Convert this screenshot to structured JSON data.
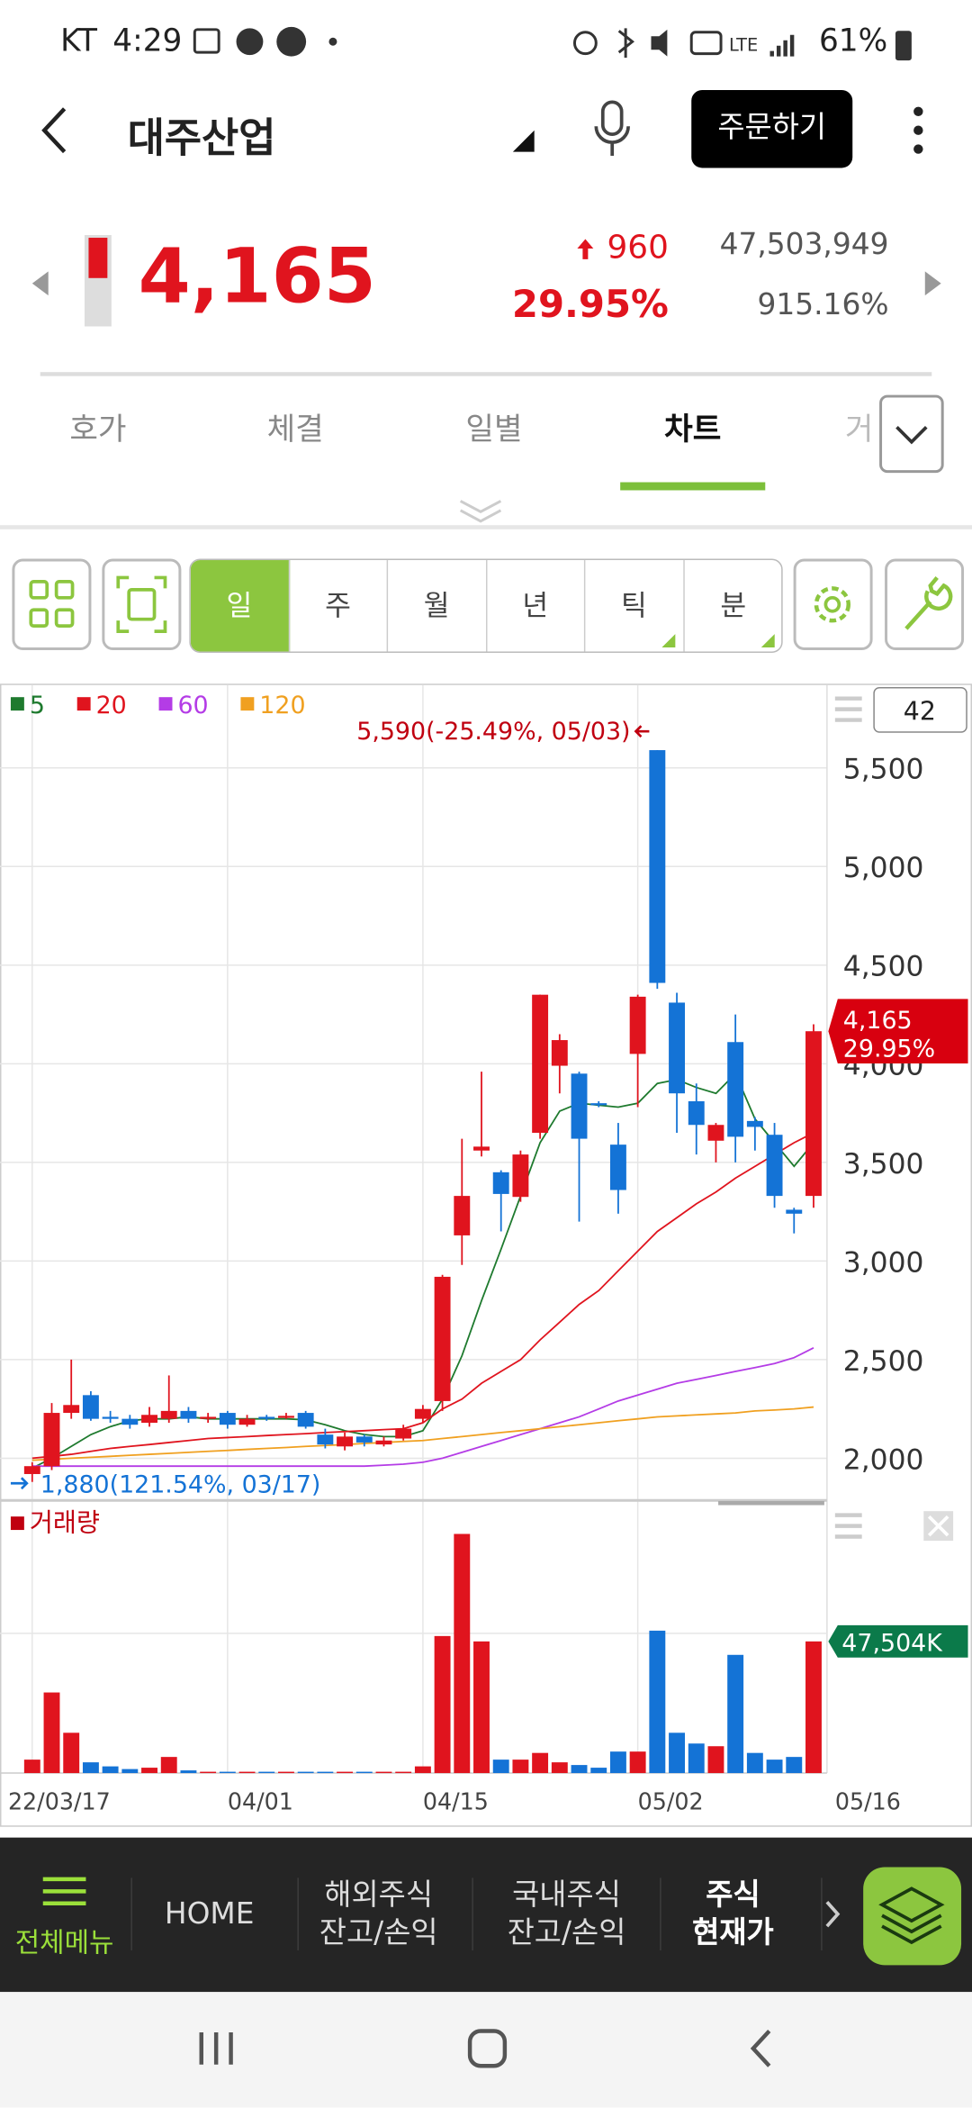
{
  "status": {
    "carrier": "KT",
    "time": "4:29",
    "battery": "61%"
  },
  "header": {
    "title": "대주산업",
    "order_button": "주문하기"
  },
  "quote": {
    "price": "4,165",
    "change": "960",
    "change_pct": "29.95%",
    "volume": "47,503,949",
    "volume_ratio": "915.16%"
  },
  "tabs": [
    "호가",
    "체결",
    "일별",
    "차트",
    "거"
  ],
  "periods": [
    "일",
    "주",
    "월",
    "년",
    "틱",
    "분"
  ],
  "chart_data": {
    "type": "candlestick",
    "count_box": "42",
    "categories": [
      "22/03/17",
      null,
      null,
      null,
      null,
      null,
      null,
      null,
      null,
      null,
      "04/01",
      null,
      null,
      null,
      null,
      null,
      null,
      null,
      null,
      null,
      "04/15",
      null,
      null,
      null,
      null,
      null,
      null,
      null,
      null,
      null,
      null,
      "05/02",
      null,
      null,
      null,
      null,
      null,
      null,
      null,
      null,
      null
    ],
    "x_end_label": "05/16",
    "open": [
      1920,
      1960,
      2230,
      2320,
      2210,
      2200,
      2180,
      2200,
      2240,
      2200,
      2230,
      2170,
      2210,
      2210,
      2230,
      2120,
      2060,
      2110,
      2070,
      2100,
      2200,
      2290,
      3130,
      3560,
      3450,
      3325,
      3650,
      3990,
      3950,
      3800,
      3590,
      4050,
      5590,
      4310,
      3810,
      3610,
      4110,
      3710,
      3640,
      3260,
      3330
    ],
    "high": [
      1980,
      2280,
      2500,
      2340,
      2240,
      2220,
      2260,
      2420,
      2260,
      2230,
      2240,
      2220,
      2220,
      2230,
      2240,
      2150,
      2130,
      2120,
      2110,
      2170,
      2270,
      2930,
      3620,
      3960,
      3460,
      3560,
      4350,
      4150,
      3960,
      3810,
      3700,
      4350,
      5590,
      4360,
      3900,
      3700,
      4250,
      3730,
      3700,
      3270,
      4200
    ],
    "low": [
      1880,
      1940,
      2200,
      2190,
      2180,
      2150,
      2160,
      2180,
      2180,
      2180,
      2150,
      2160,
      2190,
      2200,
      2150,
      2050,
      2040,
      2060,
      2060,
      2090,
      2180,
      2240,
      2980,
      3530,
      3150,
      3300,
      3620,
      3850,
      3200,
      3780,
      3240,
      3780,
      4380,
      3650,
      3540,
      3500,
      3500,
      3560,
      3270,
      3140,
      3270
    ],
    "close": [
      1960,
      2230,
      2270,
      2200,
      2200,
      2170,
      2220,
      2240,
      2200,
      2210,
      2170,
      2200,
      2200,
      2215,
      2160,
      2070,
      2110,
      2080,
      2090,
      2150,
      2250,
      2920,
      3330,
      3580,
      3340,
      3540,
      4350,
      4120,
      3620,
      3790,
      3360,
      4340,
      4410,
      3850,
      3690,
      3690,
      3630,
      3680,
      3330,
      3240,
      4165
    ],
    "up_color": "#e0141e",
    "down_color": "#1473d6",
    "series": [
      {
        "name": "5",
        "color": "#1e7a2e",
        "values": [
          1950,
          2000,
          2060,
          2120,
          2160,
          2190,
          2200,
          2200,
          2210,
          2200,
          2200,
          2200,
          2200,
          2200,
          2195,
          2170,
          2140,
          2120,
          2110,
          2110,
          2140,
          2300,
          2520,
          2800,
          3060,
          3330,
          3600,
          3760,
          3800,
          3790,
          3780,
          3800,
          3900,
          3920,
          3880,
          3850,
          3950,
          3720,
          3600,
          3480,
          3600
        ]
      },
      {
        "name": "20",
        "color": "#e0141e",
        "values": [
          2000,
          2010,
          2020,
          2035,
          2050,
          2060,
          2070,
          2080,
          2090,
          2100,
          2105,
          2110,
          2115,
          2120,
          2125,
          2130,
          2135,
          2140,
          2145,
          2150,
          2180,
          2250,
          2300,
          2380,
          2440,
          2500,
          2600,
          2690,
          2780,
          2850,
          2950,
          3050,
          3150,
          3220,
          3290,
          3350,
          3420,
          3480,
          3540,
          3600,
          3650
        ]
      },
      {
        "name": "60",
        "color": "#b43ce6",
        "values": [
          1960,
          1960,
          1960,
          1960,
          1960,
          1960,
          1960,
          1960,
          1960,
          1960,
          1960,
          1960,
          1960,
          1960,
          1960,
          1960,
          1960,
          1960,
          1965,
          1970,
          1980,
          2000,
          2030,
          2060,
          2090,
          2120,
          2150,
          2180,
          2210,
          2250,
          2290,
          2320,
          2350,
          2380,
          2400,
          2420,
          2440,
          2460,
          2480,
          2510,
          2560
        ]
      },
      {
        "name": "120",
        "color": "#f0a020",
        "values": [
          1990,
          1995,
          2000,
          2005,
          2010,
          2015,
          2020,
          2025,
          2030,
          2035,
          2040,
          2045,
          2050,
          2055,
          2060,
          2065,
          2070,
          2075,
          2080,
          2085,
          2090,
          2100,
          2110,
          2120,
          2130,
          2140,
          2150,
          2160,
          2170,
          2180,
          2190,
          2200,
          2210,
          2215,
          2220,
          2225,
          2230,
          2240,
          2245,
          2250,
          2260
        ]
      }
    ],
    "ylim": [
      1800,
      5920
    ],
    "yticks": [
      {
        "value": 2000,
        "label": "2,000"
      },
      {
        "value": 2500,
        "label": "2,500"
      },
      {
        "value": 3000,
        "label": "3,000"
      },
      {
        "value": 3500,
        "label": "3,500"
      },
      {
        "value": 4000,
        "label": "4,000"
      },
      {
        "value": 4500,
        "label": "4,500"
      },
      {
        "value": 5000,
        "label": "5,000"
      },
      {
        "value": 5500,
        "label": "5,500"
      }
    ],
    "grid": true,
    "high_annotation": "5,590(-25.49%, 05/03)",
    "low_annotation": "1,880(121.54%, 03/17)",
    "current_price_label": "4,165",
    "current_change_label": "29.95%",
    "volume_title": "거래량",
    "volume": [
      4850,
      29080,
      14540,
      3880,
      2420,
      1450,
      1940,
      5820,
      970,
      480,
      480,
      480,
      480,
      480,
      480,
      480,
      480,
      480,
      480,
      480,
      2420,
      49440,
      86280,
      47500,
      4850,
      4850,
      7270,
      3880,
      2910,
      1940,
      7760,
      7760,
      51380,
      14540,
      10660,
      9690,
      42650,
      7270,
      4850,
      5820,
      47504
    ],
    "volume_last_label": "47,504K",
    "vlim": [
      0,
      94500
    ]
  },
  "bottom_nav": {
    "menu": "전체메뉴",
    "items": [
      [
        "HOME"
      ],
      [
        "해외주식",
        "잔고/손익"
      ],
      [
        "국내주식",
        "잔고/손익"
      ],
      [
        "주식",
        "현재가"
      ]
    ]
  }
}
